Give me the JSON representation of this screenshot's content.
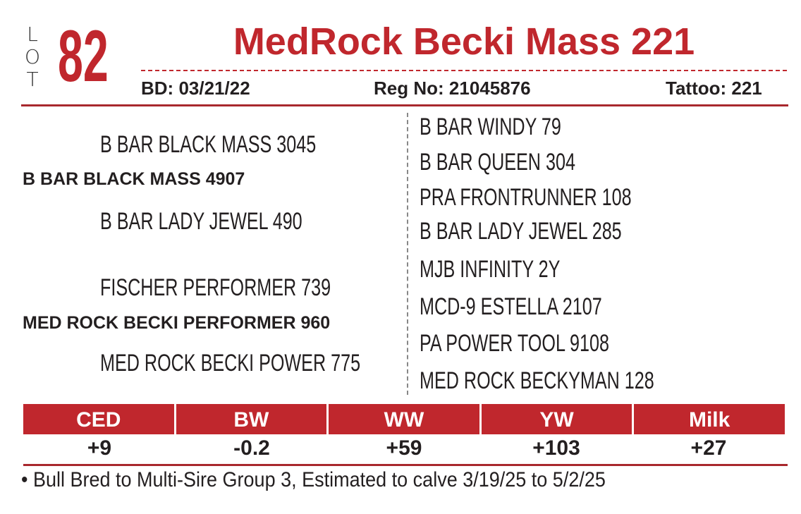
{
  "lot": {
    "label_letters": [
      "L",
      "O",
      "T"
    ],
    "number": "82"
  },
  "title": "MedRock Becki Mass 221",
  "meta": {
    "bd_label": "BD:",
    "bd": "03/21/22",
    "reg_label": "Reg No:",
    "reg": "21045876",
    "tattoo_label": "Tattoo:",
    "tattoo": "221"
  },
  "pedigree": {
    "sire": "B BAR BLACK MASS 4907",
    "sire_sire": "B BAR BLACK MASS 3045",
    "sire_dam": "B BAR LADY JEWEL 490",
    "dam": "MED ROCK BECKI PERFORMER 960",
    "dam_sire": "FISCHER PERFORMER 739",
    "dam_dam": "MED ROCK BECKI POWER 775",
    "third_gen": [
      "B BAR WINDY 79",
      "B BAR QUEEN 304",
      "PRA FRONTRUNNER 108",
      "B BAR LADY JEWEL 285",
      "MJB INFINITY 2Y",
      "MCD-9 ESTELLA 2107",
      "PA POWER TOOL 9108",
      "MED ROCK BECKYMAN 128"
    ]
  },
  "epd": {
    "headers": [
      "CED",
      "BW",
      "WW",
      "YW",
      "Milk"
    ],
    "values": [
      "+9",
      "-0.2",
      "+59",
      "+103",
      "+27"
    ]
  },
  "note": "• Bull Bred to Multi-Sire Group 3, Estimated to calve 3/19/25 to 5/2/25",
  "colors": {
    "accent": "#c0272d"
  }
}
